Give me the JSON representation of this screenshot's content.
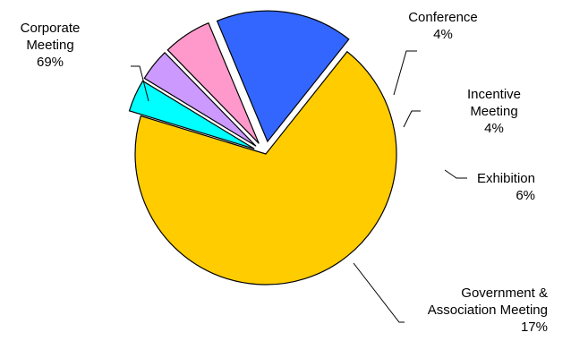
{
  "chart_data": {
    "type": "pie",
    "title": "",
    "slices": [
      {
        "name": "Corporate Meeting",
        "lines": [
          "Corporate",
          "Meeting"
        ],
        "value": 69,
        "pct_label": "69%",
        "color": "#FFCC00",
        "exploded": false
      },
      {
        "name": "Conference",
        "lines": [
          "Conference"
        ],
        "value": 4,
        "pct_label": "4%",
        "color": "#00FFFF",
        "exploded": true
      },
      {
        "name": "Incentive Meeting",
        "lines": [
          "Incentive",
          "Meeting"
        ],
        "value": 4,
        "pct_label": "4%",
        "color": "#CC99FF",
        "exploded": true
      },
      {
        "name": "Exhibition",
        "lines": [
          "Exhibition"
        ],
        "value": 6,
        "pct_label": "6%",
        "color": "#FF99CC",
        "exploded": true
      },
      {
        "name": "Government & Association Meeting",
        "lines": [
          "Government &",
          "Association Meeting"
        ],
        "value": 17,
        "pct_label": "17%",
        "color": "#3366FF",
        "exploded": true
      }
    ],
    "legend": "none",
    "grid": false
  }
}
